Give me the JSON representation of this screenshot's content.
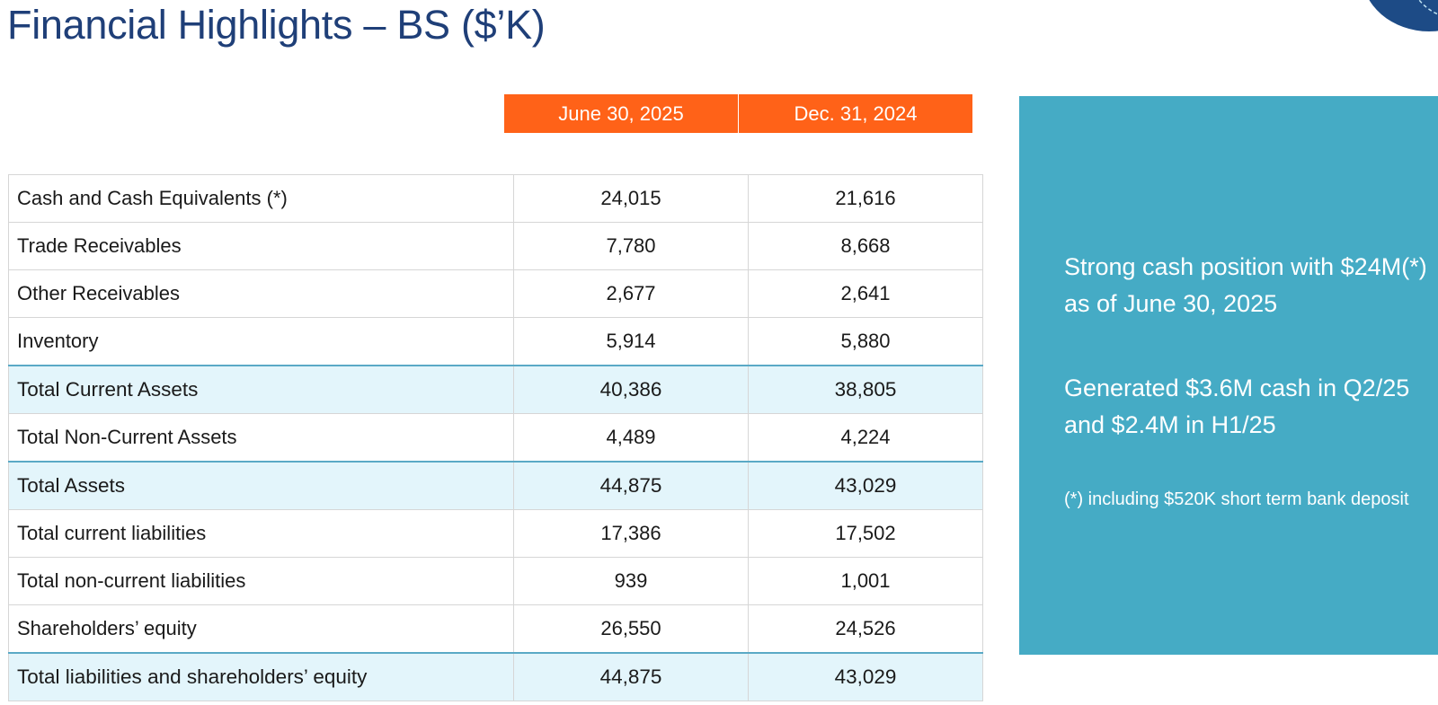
{
  "title": "Financial Highlights – BS ($’K)",
  "columns": [
    "June 30, 2025",
    "Dec. 31, 2024"
  ],
  "rows": [
    {
      "label": "Cash and Cash Equivalents (*)",
      "v1": "24,015",
      "v2": "21,616",
      "total": false
    },
    {
      "label": "Trade Receivables",
      "v1": "7,780",
      "v2": "8,668",
      "total": false
    },
    {
      "label": "Other Receivables",
      "v1": "2,677",
      "v2": "2,641",
      "total": false
    },
    {
      "label": "Inventory",
      "v1": "5,914",
      "v2": "5,880",
      "total": false
    },
    {
      "label": "Total Current Assets",
      "v1": "40,386",
      "v2": "38,805",
      "total": true
    },
    {
      "label": "Total Non-Current Assets",
      "v1": "4,489",
      "v2": "4,224",
      "total": false
    },
    {
      "label": "Total Assets",
      "v1": "44,875",
      "v2": "43,029",
      "total": true
    },
    {
      "label": "Total current liabilities",
      "v1": "17,386",
      "v2": "17,502",
      "total": false
    },
    {
      "label": "Total non-current liabilities",
      "v1": "939",
      "v2": "1,001",
      "total": false
    },
    {
      "label": "Shareholders’ equity",
      "v1": "26,550",
      "v2": "24,526",
      "total": false
    },
    {
      "label": "Total liabilities and shareholders’ equity",
      "v1": "44,875",
      "v2": "43,029",
      "total": true
    }
  ],
  "highlights": {
    "line1": "Strong cash position with $24M(*)",
    "line2": "as of June 30, 2025",
    "line3": "Generated $3.6M cash in Q2/25",
    "line4": "and $2.4M in H1/25",
    "note": "(*) including $520K short term bank deposit"
  },
  "colors": {
    "title": "#1f3f78",
    "header": "#ff6218",
    "panel": "#45abc5",
    "total_row": "#e3f5fb"
  },
  "icons": {
    "corner": "corner-decoration"
  }
}
